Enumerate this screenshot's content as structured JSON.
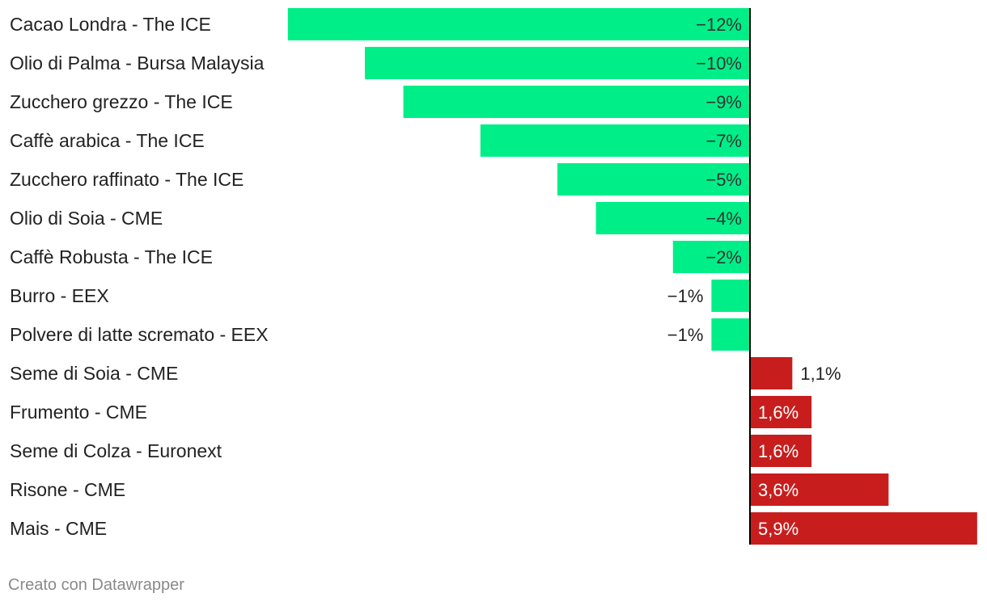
{
  "colors": {
    "negative": "#00ee88",
    "positive": "#c71e1d",
    "label_text": "#222222",
    "inside_negative_text": "#333333",
    "inside_positive_text": "#ffffff",
    "axis": "#000000",
    "footer": "#8a8a8a"
  },
  "chart_data": {
    "type": "bar",
    "orientation": "horizontal",
    "title": "",
    "xlabel": "",
    "ylabel": "",
    "xlim": [
      -12,
      5.9
    ],
    "grid": false,
    "categories": [
      "Cacao Londra - The ICE",
      "Olio di Palma - Bursa Malaysia",
      "Zucchero grezzo - The ICE",
      "Caffè arabica - The ICE",
      "Zucchero raffinato - The ICE",
      "Olio di Soia - CME",
      "Caffè Robusta - The ICE",
      "Burro - EEX",
      "Polvere di latte scremato - EEX",
      "Seme di Soia - CME",
      "Frumento - CME",
      "Seme di Colza - Euronext",
      "Risone - CME",
      "Mais - CME"
    ],
    "values": [
      -12,
      -10,
      -9,
      -7,
      -5,
      -4,
      -2,
      -1,
      -1,
      1.1,
      1.6,
      1.6,
      3.6,
      5.9
    ],
    "value_labels": [
      "−12%",
      "−10%",
      "−9%",
      "−7%",
      "−5%",
      "−4%",
      "−2%",
      "−1%",
      "−1%",
      "1,1%",
      "1,6%",
      "1,6%",
      "3,6%",
      "5,9%"
    ]
  },
  "footer": {
    "credit": "Creato con Datawrapper"
  }
}
